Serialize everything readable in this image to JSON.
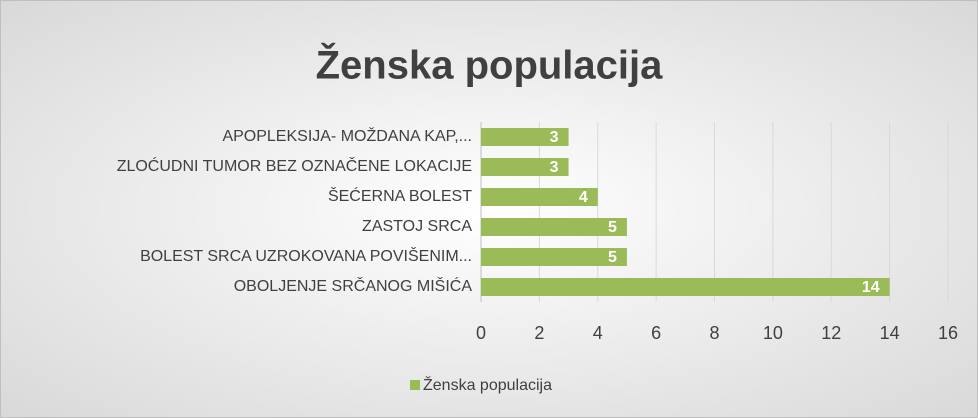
{
  "chart_data": {
    "type": "bar",
    "orientation": "horizontal",
    "title": "Ženska populacija",
    "categories": [
      "APOPLEKSIJA- MOŽDANA KAP,...",
      "ZLOĆUDNI TUMOR BEZ OZNAČENE LOKACIJE",
      "ŠEĆERNA BOLEST",
      "ZASTOJ SRCA",
      "BOLEST SRCA UZROKOVANA POVIŠENIM...",
      "OBOLJENJE SRČANOG MIŠIĆA"
    ],
    "series": [
      {
        "name": "Ženska populacija",
        "color": "#9bbb59",
        "values": [
          3,
          3,
          4,
          5,
          5,
          14
        ]
      }
    ],
    "xlim": [
      0,
      16
    ],
    "xticks": [
      0,
      2,
      4,
      6,
      8,
      10,
      12,
      14,
      16
    ],
    "grid": true,
    "legend": "bottom"
  }
}
